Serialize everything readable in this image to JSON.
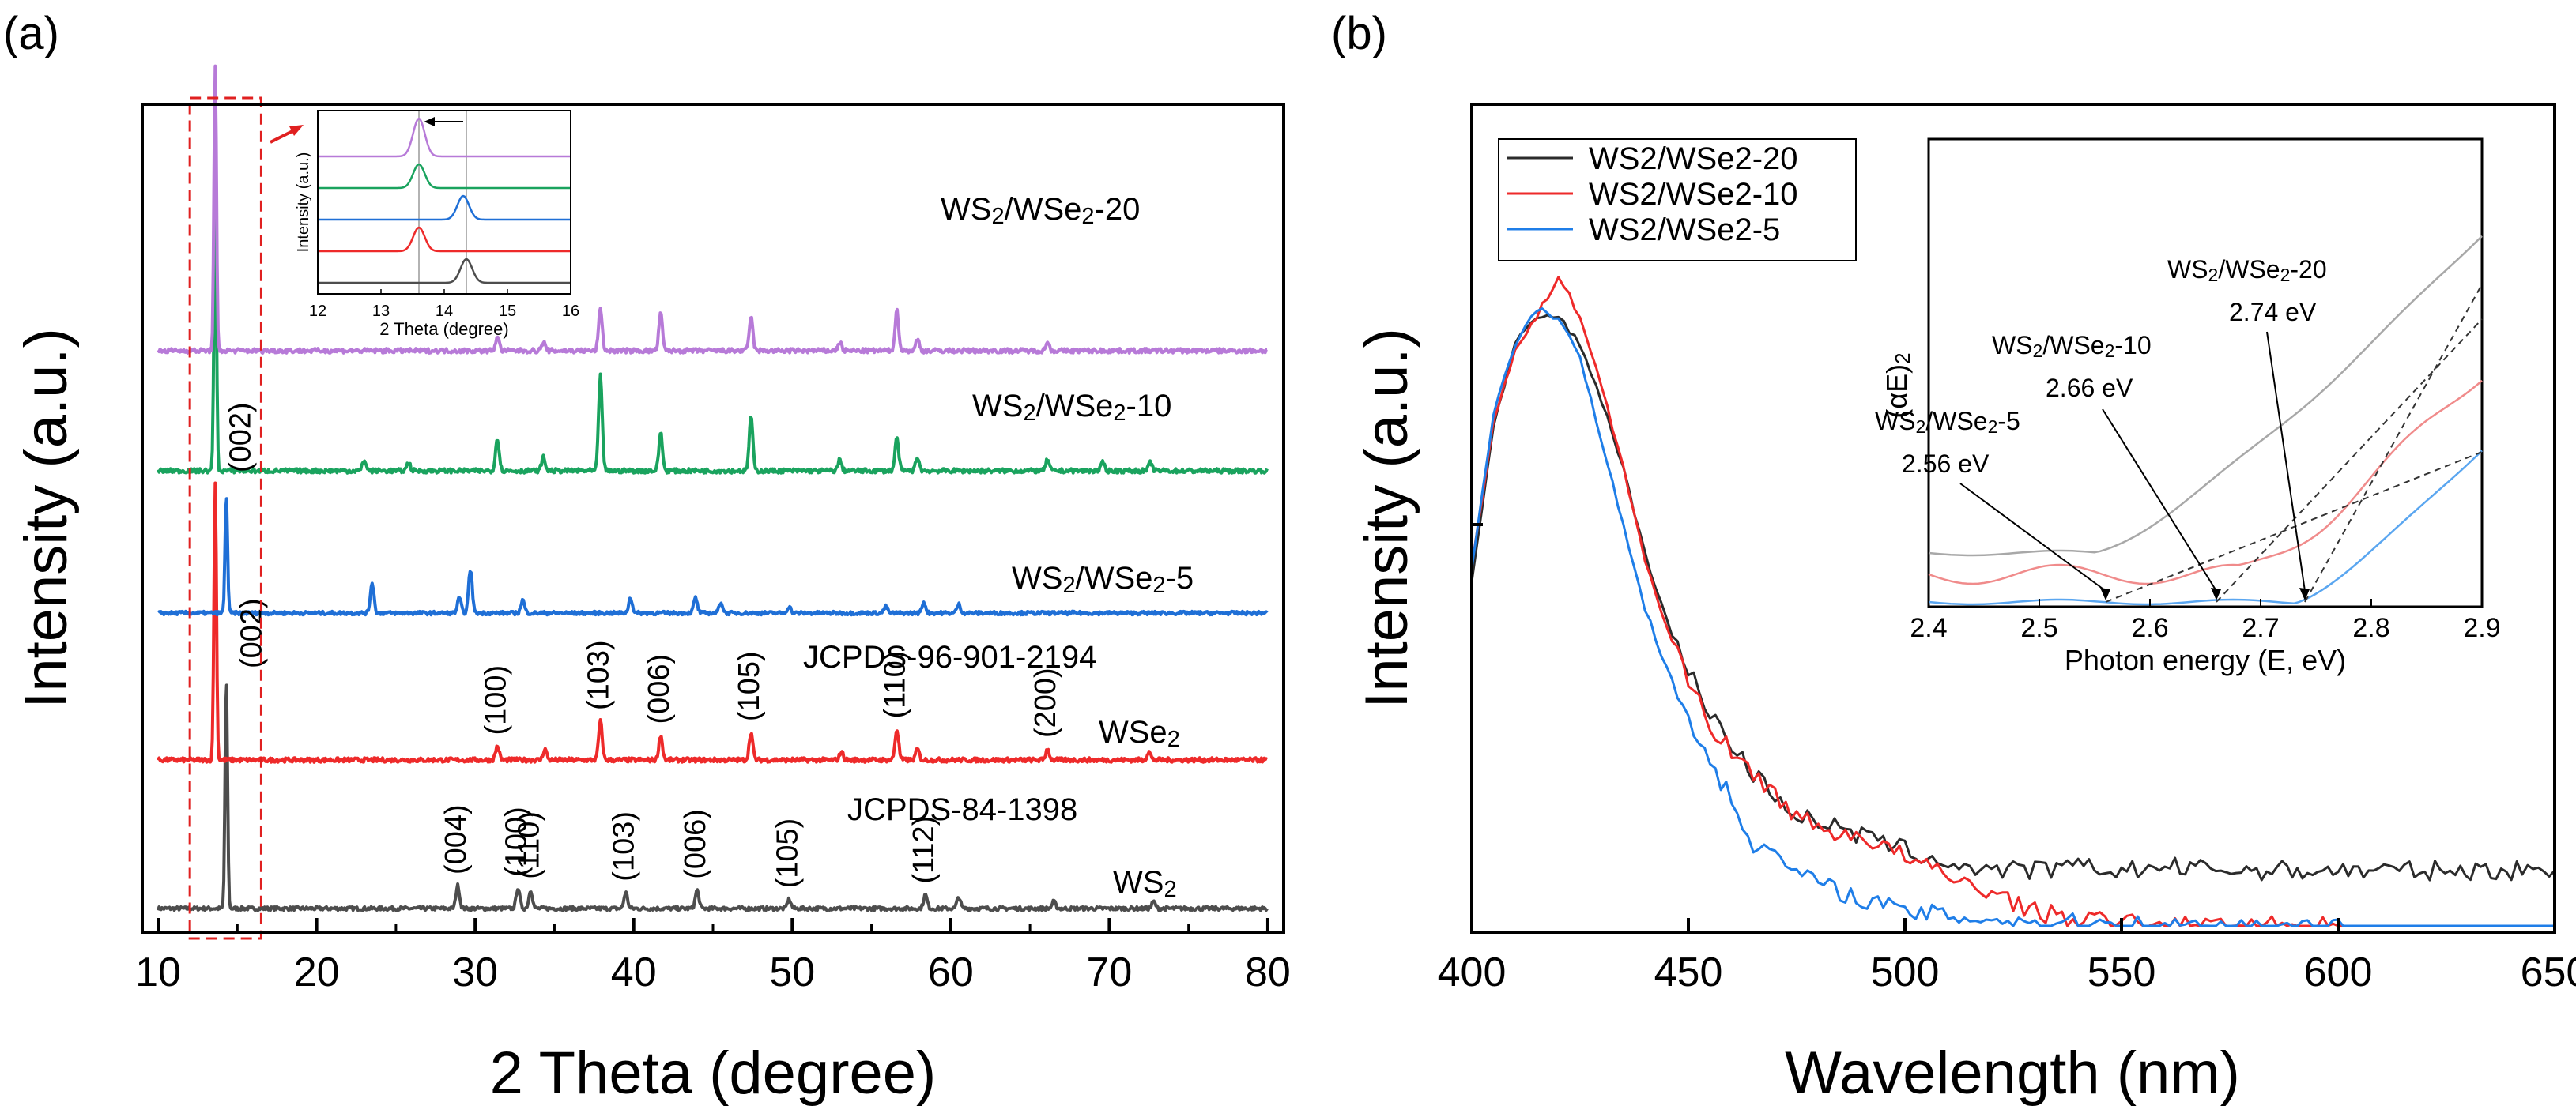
{
  "colors": {
    "WS2": "#4d4d4d",
    "WSe2": "#ee2a2a",
    "WS2/WSe2-5": "#1f6fd6",
    "WS2/WSe2-10": "#1aa35e",
    "WS2/WSe2-20": "#b77ad8",
    "uv20": "#2b2b2b",
    "uv10": "#ee2a2a",
    "uv5": "#1f7ee8",
    "inset20": "#a8a8a8",
    "inset10": "#f08b8b",
    "inset5": "#5aa6f0",
    "highlight": "#e02020"
  },
  "chart_data": [
    {
      "panel": "(a)",
      "type": "line",
      "title": "",
      "xlabel": "2 Theta (degree)",
      "ylabel": "Intensity (a.u.)",
      "xlim": [
        9,
        81
      ],
      "xticks": [
        10,
        20,
        30,
        40,
        50,
        60,
        70,
        80
      ],
      "series": [
        {
          "name": "WS2",
          "label_parts": [
            "WS",
            "2",
            ""
          ],
          "color_key": "WS2",
          "reference": "JCPDS-84-1398",
          "peaks": [
            {
              "x": 14.3,
              "h": 1.0,
              "hkl": "(002)"
            },
            {
              "x": 28.9,
              "h": 0.1,
              "hkl": "(004)"
            },
            {
              "x": 32.7,
              "h": 0.09,
              "hkl": "(100)"
            },
            {
              "x": 33.5,
              "h": 0.08,
              "hkl": "(110)"
            },
            {
              "x": 39.5,
              "h": 0.07,
              "hkl": "(103)"
            },
            {
              "x": 44.0,
              "h": 0.08,
              "hkl": "(006)"
            },
            {
              "x": 49.8,
              "h": 0.04,
              "hkl": "(105)"
            },
            {
              "x": 58.4,
              "h": 0.06,
              "hkl": "(112)"
            },
            {
              "x": 60.5,
              "h": 0.05,
              "hkl": ""
            },
            {
              "x": 66.5,
              "h": 0.03,
              "hkl": ""
            },
            {
              "x": 72.8,
              "h": 0.03,
              "hkl": ""
            }
          ]
        },
        {
          "name": "WSe2",
          "label_parts": [
            "WSe",
            "2",
            ""
          ],
          "color_key": "WSe2",
          "reference": "JCPDS-96-901-2194",
          "peaks": [
            {
              "x": 13.6,
              "h": 1.0,
              "hkl": "(002)"
            },
            {
              "x": 31.4,
              "h": 0.05,
              "hkl": "(100)"
            },
            {
              "x": 34.4,
              "h": 0.04,
              "hkl": ""
            },
            {
              "x": 37.9,
              "h": 0.14,
              "hkl": "(103)"
            },
            {
              "x": 41.7,
              "h": 0.09,
              "hkl": "(006)"
            },
            {
              "x": 47.4,
              "h": 0.1,
              "hkl": "(105)"
            },
            {
              "x": 53.1,
              "h": 0.03,
              "hkl": ""
            },
            {
              "x": 56.6,
              "h": 0.11,
              "hkl": "(110)"
            },
            {
              "x": 57.9,
              "h": 0.04,
              "hkl": ""
            },
            {
              "x": 66.1,
              "h": 0.04,
              "hkl": "(200)"
            },
            {
              "x": 72.5,
              "h": 0.03,
              "hkl": ""
            }
          ]
        },
        {
          "name": "WS2/WSe2-5",
          "label_parts": [
            "WS",
            "2",
            "/WSe",
            "2",
            "-5"
          ],
          "color_key": "WS2/WSe2-5",
          "peaks": [
            {
              "x": 14.3,
              "h": 0.55,
              "hkl": ""
            },
            {
              "x": 23.5,
              "h": 0.14,
              "hkl": ""
            },
            {
              "x": 29.0,
              "h": 0.07,
              "hkl": ""
            },
            {
              "x": 29.7,
              "h": 0.2,
              "hkl": ""
            },
            {
              "x": 33.0,
              "h": 0.06,
              "hkl": ""
            },
            {
              "x": 39.8,
              "h": 0.07,
              "hkl": ""
            },
            {
              "x": 43.9,
              "h": 0.07,
              "hkl": ""
            },
            {
              "x": 45.5,
              "h": 0.05,
              "hkl": ""
            },
            {
              "x": 49.8,
              "h": 0.03,
              "hkl": ""
            },
            {
              "x": 55.9,
              "h": 0.03,
              "hkl": ""
            },
            {
              "x": 58.3,
              "h": 0.05,
              "hkl": ""
            },
            {
              "x": 60.5,
              "h": 0.04,
              "hkl": ""
            }
          ]
        },
        {
          "name": "WS2/WSe2-10",
          "label_parts": [
            "WS",
            "2",
            "/WSe",
            "2",
            "-10"
          ],
          "color_key": "WS2/WSe2-10",
          "peaks": [
            {
              "x": 13.6,
              "h": 1.0,
              "hkl": ""
            },
            {
              "x": 23.0,
              "h": 0.04,
              "hkl": ""
            },
            {
              "x": 25.8,
              "h": 0.03,
              "hkl": ""
            },
            {
              "x": 31.4,
              "h": 0.12,
              "hkl": ""
            },
            {
              "x": 34.3,
              "h": 0.05,
              "hkl": ""
            },
            {
              "x": 37.9,
              "h": 0.35,
              "hkl": ""
            },
            {
              "x": 41.7,
              "h": 0.14,
              "hkl": ""
            },
            {
              "x": 47.4,
              "h": 0.2,
              "hkl": ""
            },
            {
              "x": 53.0,
              "h": 0.04,
              "hkl": ""
            },
            {
              "x": 56.6,
              "h": 0.12,
              "hkl": ""
            },
            {
              "x": 57.9,
              "h": 0.05,
              "hkl": ""
            },
            {
              "x": 66.1,
              "h": 0.04,
              "hkl": ""
            },
            {
              "x": 69.6,
              "h": 0.03,
              "hkl": ""
            },
            {
              "x": 72.6,
              "h": 0.03,
              "hkl": ""
            }
          ]
        },
        {
          "name": "WS2/WSe2-20",
          "label_parts": [
            "WS",
            "2",
            "/WSe",
            "2",
            "-20"
          ],
          "color_key": "WS2/WSe2-20",
          "peaks": [
            {
              "x": 13.6,
              "h": 1.0,
              "hkl": ""
            },
            {
              "x": 31.4,
              "h": 0.05,
              "hkl": ""
            },
            {
              "x": 34.3,
              "h": 0.03,
              "hkl": ""
            },
            {
              "x": 37.9,
              "h": 0.15,
              "hkl": ""
            },
            {
              "x": 41.7,
              "h": 0.13,
              "hkl": ""
            },
            {
              "x": 47.4,
              "h": 0.12,
              "hkl": ""
            },
            {
              "x": 53.0,
              "h": 0.03,
              "hkl": ""
            },
            {
              "x": 56.6,
              "h": 0.14,
              "hkl": ""
            },
            {
              "x": 57.9,
              "h": 0.04,
              "hkl": ""
            },
            {
              "x": 66.1,
              "h": 0.03,
              "hkl": ""
            }
          ]
        }
      ],
      "highlight_region_x": [
        12,
        16.5
      ],
      "inset": {
        "xlabel": "2 Theta (degree)",
        "ylabel": "Intensity (a.u.)",
        "xlim": [
          12,
          16
        ],
        "xticks": [
          "12",
          "13",
          "14",
          "15",
          "16"
        ],
        "reference_lines_x": [
          13.6,
          14.35
        ],
        "order_bottom_to_top": [
          "WS2",
          "WSe2",
          "WS2/WSe2-5",
          "WS2/WSe2-10",
          "WS2/WSe2-20"
        ],
        "peak_positions": [
          14.35,
          13.6,
          14.3,
          13.6,
          13.6
        ],
        "arrow_direction": "left"
      }
    },
    {
      "panel": "(b)",
      "type": "line",
      "title": "",
      "xlabel": "Wavelength (nm)",
      "ylabel": "Intensity (a.u.)",
      "xlim": [
        400,
        650
      ],
      "xticks": [
        400,
        450,
        500,
        550,
        600,
        650
      ],
      "legend_position": "top-left",
      "series": [
        {
          "name": "WS2/WSe2-20",
          "color_key": "uv20",
          "x": [
            400,
            405,
            410,
            415,
            420,
            425,
            430,
            435,
            440,
            445,
            450,
            455,
            460,
            465,
            470,
            475,
            480,
            490,
            500,
            510,
            520,
            530,
            540,
            550,
            560,
            580,
            600,
            620,
            640,
            650
          ],
          "y": [
            0.5,
            0.72,
            0.84,
            0.88,
            0.88,
            0.84,
            0.76,
            0.66,
            0.54,
            0.44,
            0.37,
            0.31,
            0.26,
            0.22,
            0.19,
            0.16,
            0.15,
            0.13,
            0.11,
            0.09,
            0.08,
            0.08,
            0.085,
            0.08,
            0.085,
            0.08,
            0.08,
            0.08,
            0.08,
            0.08
          ]
        },
        {
          "name": "WS2/WSe2-10",
          "color_key": "uv10",
          "x": [
            400,
            405,
            410,
            415,
            420,
            425,
            430,
            435,
            440,
            445,
            450,
            455,
            460,
            465,
            470,
            475,
            480,
            490,
            500,
            510,
            520,
            530,
            540,
            550,
            560,
            580,
            600,
            620,
            640,
            650
          ],
          "y": [
            0.52,
            0.73,
            0.83,
            0.88,
            0.94,
            0.88,
            0.78,
            0.66,
            0.53,
            0.43,
            0.36,
            0.29,
            0.25,
            0.22,
            0.19,
            0.16,
            0.14,
            0.13,
            0.1,
            0.07,
            0.05,
            0.02,
            0.01,
            0.005,
            0.0,
            0.0,
            0.0,
            0.0,
            0.0,
            0.0
          ]
        },
        {
          "name": "WS2/WSe2-5",
          "color_key": "uv5",
          "x": [
            400,
            405,
            410,
            415,
            420,
            425,
            430,
            435,
            440,
            445,
            450,
            455,
            460,
            465,
            470,
            475,
            480,
            490,
            500,
            510,
            520,
            530,
            540,
            550,
            560,
            580,
            600,
            620,
            640,
            650
          ],
          "y": [
            0.52,
            0.74,
            0.84,
            0.89,
            0.88,
            0.82,
            0.7,
            0.58,
            0.46,
            0.37,
            0.3,
            0.24,
            0.18,
            0.12,
            0.1,
            0.08,
            0.06,
            0.04,
            0.02,
            0.015,
            0.01,
            0.005,
            0.004,
            0.003,
            0.0,
            0.0,
            0.0,
            0.0,
            0.0,
            0.0
          ]
        }
      ],
      "inset": {
        "xlabel": "Photon energy (E, eV)",
        "ylabel": "(αE)²",
        "ylabel_parts": [
          "(αE)",
          "2"
        ],
        "xlim": [
          2.4,
          2.9
        ],
        "xticks": [
          "2.4",
          "2.5",
          "2.6",
          "2.7",
          "2.8",
          "2.9"
        ],
        "bandgaps": [
          {
            "name": "WS2/WSe2-20",
            "label_parts": [
              "WS",
              "2",
              "/WSe",
              "2",
              "-20"
            ],
            "value_text": "2.74 eV",
            "eg": 2.74,
            "color_key": "inset20"
          },
          {
            "name": "WS2/WSe2-10",
            "label_parts": [
              "WS",
              "2",
              "/WSe",
              "2",
              "-10"
            ],
            "value_text": "2.66 eV",
            "eg": 2.66,
            "color_key": "inset10"
          },
          {
            "name": "WS2/WSe2-5",
            "label_parts": [
              "WS",
              "2",
              "/WSe",
              "2",
              "-5"
            ],
            "value_text": "2.56 eV",
            "eg": 2.56,
            "color_key": "inset5"
          }
        ]
      }
    }
  ]
}
